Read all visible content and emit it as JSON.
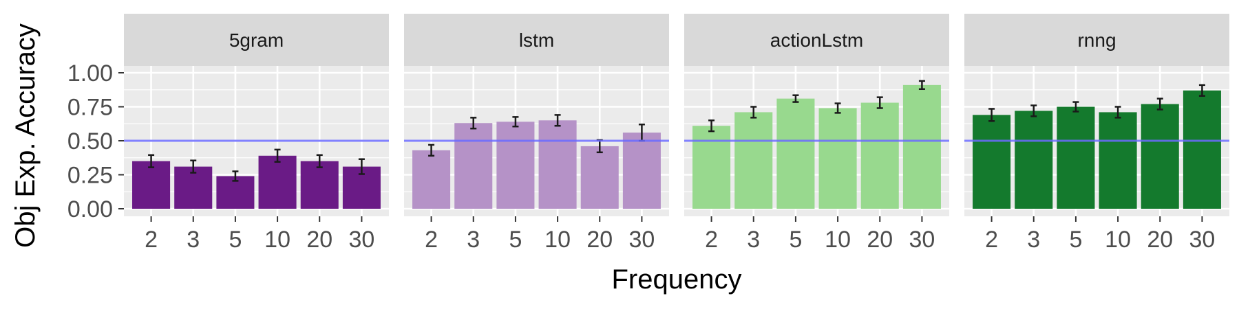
{
  "chart_data": {
    "type": "bar",
    "xlabel": "Frequency",
    "ylabel": "Obj Exp. Accuracy",
    "ylim": [
      0,
      1
    ],
    "yticks": [
      "0.00",
      "0.25",
      "0.50",
      "0.75",
      "1.00"
    ],
    "ytick_values": [
      0,
      0.25,
      0.5,
      0.75,
      1.0
    ],
    "categories": [
      "2",
      "3",
      "5",
      "10",
      "20",
      "30"
    ],
    "reference_line": 0.5,
    "grid": true,
    "legend": "none",
    "colors": {
      "reference_line": "#6b6bff",
      "panel_background": "#ebebeb",
      "strip_background": "#d9d9d9",
      "grid": "#ffffff",
      "error_bar": "#1a1a1a"
    },
    "facets": [
      {
        "name": "5gram",
        "color": "#6a1b86",
        "values": [
          0.35,
          0.31,
          0.24,
          0.39,
          0.35,
          0.31
        ],
        "errors": [
          0.045,
          0.045,
          0.035,
          0.045,
          0.045,
          0.055
        ]
      },
      {
        "name": "lstm",
        "color": "#b592c7",
        "values": [
          0.43,
          0.63,
          0.64,
          0.65,
          0.46,
          0.56
        ],
        "errors": [
          0.04,
          0.04,
          0.035,
          0.04,
          0.045,
          0.06
        ]
      },
      {
        "name": "actionLstm",
        "color": "#98d98e",
        "values": [
          0.61,
          0.71,
          0.81,
          0.74,
          0.78,
          0.91
        ],
        "errors": [
          0.04,
          0.04,
          0.025,
          0.035,
          0.04,
          0.03
        ]
      },
      {
        "name": "rnng",
        "color": "#147a2d",
        "values": [
          0.69,
          0.72,
          0.75,
          0.71,
          0.77,
          0.87
        ],
        "errors": [
          0.045,
          0.04,
          0.035,
          0.04,
          0.04,
          0.04
        ]
      }
    ]
  }
}
